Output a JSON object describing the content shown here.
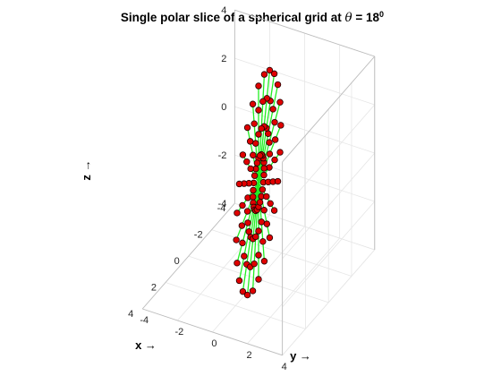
{
  "chart_data": {
    "type": "scatter",
    "title_main": "Single polar slice of a spherical grid at ",
    "title_theta": "θ",
    "title_eq": " = 18",
    "title_sup": "0",
    "xlabel": "x →",
    "ylabel": "y →",
    "zlabel": "z →",
    "theta_deg": 18,
    "radii": [
      1,
      2,
      3,
      4
    ],
    "phi_step_deg": 15,
    "xlim": [
      -4,
      4
    ],
    "ylim": [
      -4,
      4
    ],
    "zlim": [
      -4,
      4
    ],
    "x_ticks": [
      "-4",
      "-2",
      "0",
      "2",
      "4"
    ],
    "y_ticks": [
      "-4",
      "-2",
      "0",
      "2",
      "4"
    ],
    "z_ticks": [
      "-4",
      "-2",
      "0",
      "2",
      "4"
    ],
    "grid": true,
    "colors": {
      "spoke": "#22ee22",
      "marker_fill": "#e00000",
      "marker_edge": "#200000"
    }
  }
}
